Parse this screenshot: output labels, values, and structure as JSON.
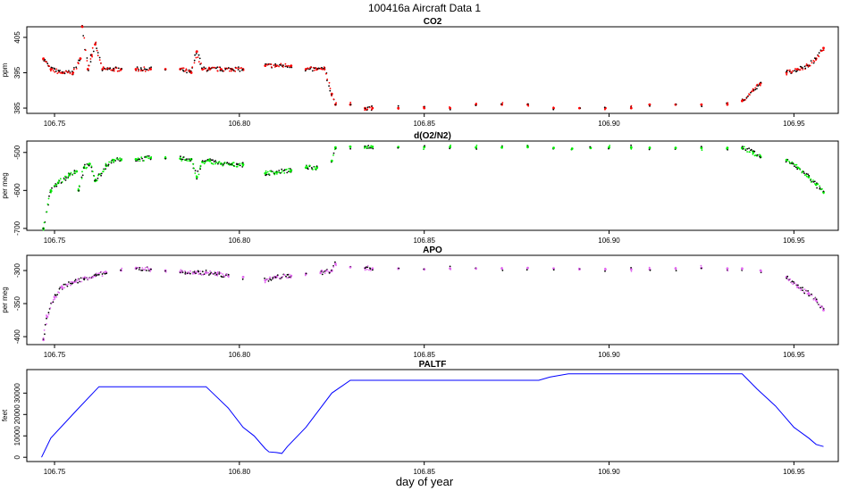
{
  "title": "100416a    Aircraft Data 1",
  "xlabel": "day of year",
  "colors": {
    "co2": "#ff0000",
    "o2n2": "#00ee00",
    "apo": "#e066ee",
    "paltf": "#0000ff",
    "dot": "#000000"
  },
  "chart_data": [
    {
      "type": "scatter",
      "title": "CO2",
      "ylabel": "ppm",
      "xlim": [
        106.7425,
        106.962
      ],
      "ylim": [
        383.5,
        408
      ],
      "xticks": [
        "106.75",
        "106.80",
        "106.85",
        "106.90",
        "106.95"
      ],
      "yticks": [
        "385",
        "395",
        "405"
      ],
      "series": [
        {
          "x": [
            106.747,
            106.749,
            106.752,
            106.755,
            106.757,
            106.7575,
            106.759,
            106.76,
            106.761,
            106.763,
            106.766,
            106.768,
            106.772,
            106.776,
            106.78,
            106.784,
            106.787,
            106.7885,
            106.79,
            106.792,
            106.795,
            106.798,
            106.801,
            106.807,
            106.81,
            106.814,
            106.818,
            106.821,
            106.823,
            106.825,
            106.826,
            106.83,
            106.834,
            106.836,
            106.843,
            106.85,
            106.857,
            106.864,
            106.871,
            106.878,
            106.885,
            106.892,
            106.899,
            106.906,
            106.911,
            106.918,
            106.925,
            106.932,
            106.936,
            106.939,
            106.941,
            106.948,
            106.951,
            106.954,
            106.956,
            106.958
          ],
          "y": [
            399,
            396,
            395,
            395,
            399,
            408,
            396,
            400,
            403,
            396,
            396,
            396,
            396,
            396,
            396,
            396,
            395,
            401,
            396,
            396,
            396,
            396,
            396,
            397,
            397,
            397,
            396,
            396,
            396,
            389,
            386,
            386,
            385,
            385,
            385,
            385,
            385,
            386,
            386,
            386,
            385,
            385,
            385,
            385,
            386,
            386,
            386,
            386,
            387,
            390,
            392,
            395,
            396,
            397,
            399,
            402
          ]
        }
      ]
    },
    {
      "type": "scatter",
      "title": "d(O2/N2)",
      "ylabel": "per meg",
      "xlim": [
        106.7425,
        106.962
      ],
      "ylim": [
        -705,
        -470
      ],
      "xticks": [
        "106.75",
        "106.80",
        "106.85",
        "106.90",
        "106.95"
      ],
      "yticks": [
        "-700",
        "-600",
        "-500"
      ],
      "series": [
        {
          "x": [
            106.747,
            106.749,
            106.751,
            106.754,
            106.756,
            106.7565,
            106.758,
            106.7595,
            106.761,
            106.764,
            106.766,
            106.768,
            106.772,
            106.776,
            106.78,
            106.784,
            106.787,
            106.7885,
            106.79,
            106.792,
            106.795,
            106.798,
            106.801,
            106.807,
            106.81,
            106.814,
            106.818,
            106.821,
            106.825,
            106.826,
            106.83,
            106.834,
            106.836,
            106.843,
            106.85,
            106.857,
            106.864,
            106.871,
            106.878,
            106.885,
            106.89,
            106.895,
            106.9,
            106.906,
            106.911,
            106.918,
            106.925,
            106.932,
            106.936,
            106.939,
            106.941,
            106.948,
            106.951,
            106.954,
            106.956,
            106.958
          ],
          "y": [
            -700,
            -600,
            -580,
            -560,
            -550,
            -600,
            -540,
            -530,
            -575,
            -535,
            -520,
            -520,
            -518,
            -515,
            -515,
            -516,
            -518,
            -565,
            -525,
            -522,
            -530,
            -532,
            -532,
            -555,
            -552,
            -547,
            -540,
            -540,
            -522,
            -487,
            -485,
            -485,
            -485,
            -486,
            -486,
            -486,
            -487,
            -487,
            -486,
            -488,
            -490,
            -488,
            -487,
            -487,
            -488,
            -488,
            -488,
            -488,
            -488,
            -500,
            -512,
            -520,
            -540,
            -565,
            -585,
            -605
          ]
        }
      ]
    },
    {
      "type": "scatter",
      "title": "APO",
      "ylabel": "per meg",
      "xlim": [
        106.7425,
        106.962
      ],
      "ylim": [
        -412,
        -277
      ],
      "xticks": [
        "106.75",
        "106.80",
        "106.85",
        "106.90",
        "106.95"
      ],
      "yticks": [
        "-400",
        "-350",
        "-300"
      ],
      "series": [
        {
          "x": [
            106.747,
            106.748,
            106.75,
            106.752,
            106.755,
            106.758,
            106.761,
            106.764,
            106.768,
            106.772,
            106.776,
            106.78,
            106.784,
            106.788,
            106.791,
            106.794,
            106.797,
            106.801,
            106.807,
            106.81,
            106.814,
            106.818,
            106.822,
            106.825,
            106.826,
            106.83,
            106.834,
            106.836,
            106.843,
            106.85,
            106.857,
            106.864,
            106.871,
            106.878,
            106.885,
            106.892,
            106.899,
            106.906,
            106.911,
            106.918,
            106.925,
            106.932,
            106.936,
            106.941,
            106.948,
            106.951,
            106.954,
            106.956,
            106.958
          ],
          "y": [
            -405,
            -370,
            -340,
            -325,
            -318,
            -312,
            -308,
            -303,
            -300,
            -297,
            -298,
            -300,
            -302,
            -304,
            -303,
            -305,
            -308,
            -310,
            -315,
            -310,
            -308,
            -305,
            -303,
            -300,
            -290,
            -295,
            -296,
            -297,
            -297,
            -298,
            -297,
            -297,
            -297,
            -296,
            -297,
            -298,
            -298,
            -298,
            -298,
            -297,
            -296,
            -297,
            -297,
            -300,
            -310,
            -325,
            -335,
            -345,
            -360
          ]
        }
      ]
    },
    {
      "type": "line",
      "title": "PALTF",
      "ylabel": "feet",
      "xlim": [
        106.7425,
        106.962
      ],
      "ylim": [
        -2000,
        41000
      ],
      "xticks": [
        "106.75",
        "106.80",
        "106.85",
        "106.90",
        "106.95"
      ],
      "yticks": [
        "0",
        "10000",
        "20000",
        "30000"
      ],
      "series": [
        {
          "x": [
            106.7465,
            106.749,
            106.756,
            106.762,
            106.778,
            106.791,
            106.797,
            106.801,
            106.804,
            106.807,
            106.808,
            106.81,
            106.8115,
            106.813,
            106.818,
            106.825,
            106.83,
            106.855,
            106.881,
            106.884,
            106.889,
            106.905,
            106.92,
            106.936,
            106.94,
            106.945,
            106.95,
            106.954,
            106.956,
            106.958
          ],
          "y": [
            0,
            9000,
            22000,
            33000,
            33000,
            33000,
            23000,
            14000,
            10000,
            4000,
            2500,
            2200,
            1800,
            5000,
            14000,
            30000,
            36000,
            36000,
            36000,
            37500,
            39000,
            39000,
            39000,
            39000,
            32000,
            24000,
            14000,
            9000,
            6000,
            5000
          ]
        }
      ]
    }
  ]
}
